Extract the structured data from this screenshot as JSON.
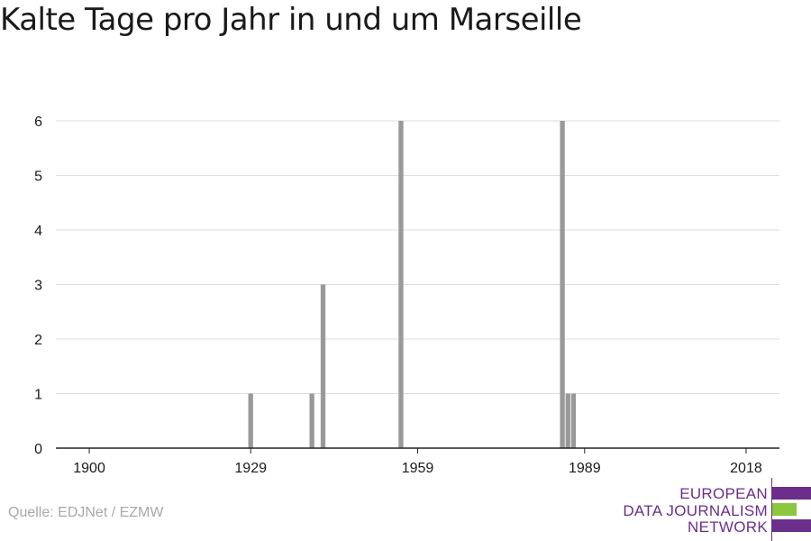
{
  "title": "Kalte Tage pro Jahr in und um Marseille",
  "source": "Quelle: EDJNet / EZMW",
  "logo": {
    "lines": [
      "EUROPEAN",
      "DATA JOURNALISM",
      "NETWORK"
    ],
    "colors": {
      "purple": "#6b2e8a",
      "green": "#8dc63f"
    }
  },
  "colors": {
    "bar": "#999999",
    "grid": "#dddddd",
    "axis": "#222222",
    "text": "#1a1a1a"
  },
  "chart_data": {
    "type": "bar",
    "title": "Kalte Tage pro Jahr in und um Marseille",
    "xlabel": "",
    "ylabel": "",
    "xlim": [
      1894,
      2024
    ],
    "ylim": [
      0,
      6
    ],
    "x_ticks": [
      1900,
      1929,
      1959,
      1989,
      2018
    ],
    "y_ticks": [
      0,
      1,
      2,
      3,
      4,
      5,
      6
    ],
    "grid": true,
    "x": [
      1929,
      1940,
      1942,
      1956,
      1985,
      1986,
      1987
    ],
    "values": [
      1,
      1,
      3,
      6,
      6,
      1,
      1
    ]
  }
}
